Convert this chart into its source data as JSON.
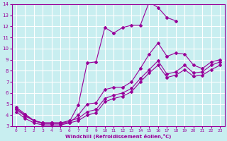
{
  "xlabel": "Windchill (Refroidissement éolien,°C)",
  "bg_color": "#c8eef0",
  "line_color": "#990099",
  "grid_color": "#ffffff",
  "xlim": [
    -0.5,
    23.5
  ],
  "ylim": [
    3,
    14
  ],
  "xticks": [
    0,
    1,
    2,
    3,
    4,
    5,
    6,
    7,
    8,
    9,
    10,
    11,
    12,
    13,
    14,
    15,
    16,
    17,
    18,
    19,
    20,
    21,
    22,
    23
  ],
  "yticks": [
    3,
    4,
    5,
    6,
    7,
    8,
    9,
    10,
    11,
    12,
    13,
    14
  ],
  "series": [
    {
      "x": [
        0,
        1,
        2,
        3,
        4,
        5,
        6,
        7,
        8,
        9,
        10,
        11,
        12,
        13,
        14,
        15,
        16,
        17,
        18,
        19,
        20,
        21,
        22,
        23
      ],
      "y": [
        4.7,
        4.1,
        3.5,
        3.3,
        3.3,
        3.3,
        3.4,
        4.9,
        8.7,
        8.8,
        11.9,
        11.4,
        11.9,
        12.1,
        12.1,
        14.2,
        13.7,
        12.8,
        12.5,
        null,
        null,
        null,
        null,
        null
      ]
    },
    {
      "x": [
        0,
        1,
        2,
        3,
        4,
        5,
        6,
        7,
        8,
        9,
        10,
        11,
        12,
        13,
        14,
        15,
        16,
        17,
        18,
        19,
        20,
        21,
        22,
        23
      ],
      "y": [
        4.6,
        4.0,
        3.5,
        3.2,
        3.2,
        3.2,
        3.3,
        4.0,
        5.0,
        5.1,
        6.3,
        6.5,
        6.5,
        7.0,
        8.2,
        9.5,
        10.5,
        9.3,
        9.6,
        9.5,
        8.5,
        8.2,
        8.8,
        9.0
      ]
    },
    {
      "x": [
        0,
        1,
        2,
        3,
        4,
        5,
        6,
        7,
        8,
        9,
        10,
        11,
        12,
        13,
        14,
        15,
        16,
        17,
        18,
        19,
        20,
        21,
        22,
        23
      ],
      "y": [
        4.5,
        3.9,
        3.5,
        3.3,
        3.3,
        3.3,
        3.5,
        3.7,
        4.3,
        4.5,
        5.5,
        5.8,
        6.0,
        6.4,
        7.3,
        8.1,
        8.9,
        7.7,
        7.9,
        8.5,
        7.8,
        7.9,
        8.5,
        8.8
      ]
    },
    {
      "x": [
        0,
        1,
        2,
        3,
        4,
        5,
        6,
        7,
        8,
        9,
        10,
        11,
        12,
        13,
        14,
        15,
        16,
        17,
        18,
        19,
        20,
        21,
        22,
        23
      ],
      "y": [
        4.3,
        3.7,
        3.3,
        3.1,
        3.1,
        3.1,
        3.3,
        3.5,
        4.0,
        4.2,
        5.2,
        5.5,
        5.7,
        6.1,
        7.0,
        7.8,
        8.5,
        7.4,
        7.6,
        8.1,
        7.5,
        7.6,
        8.1,
        8.5
      ]
    }
  ]
}
